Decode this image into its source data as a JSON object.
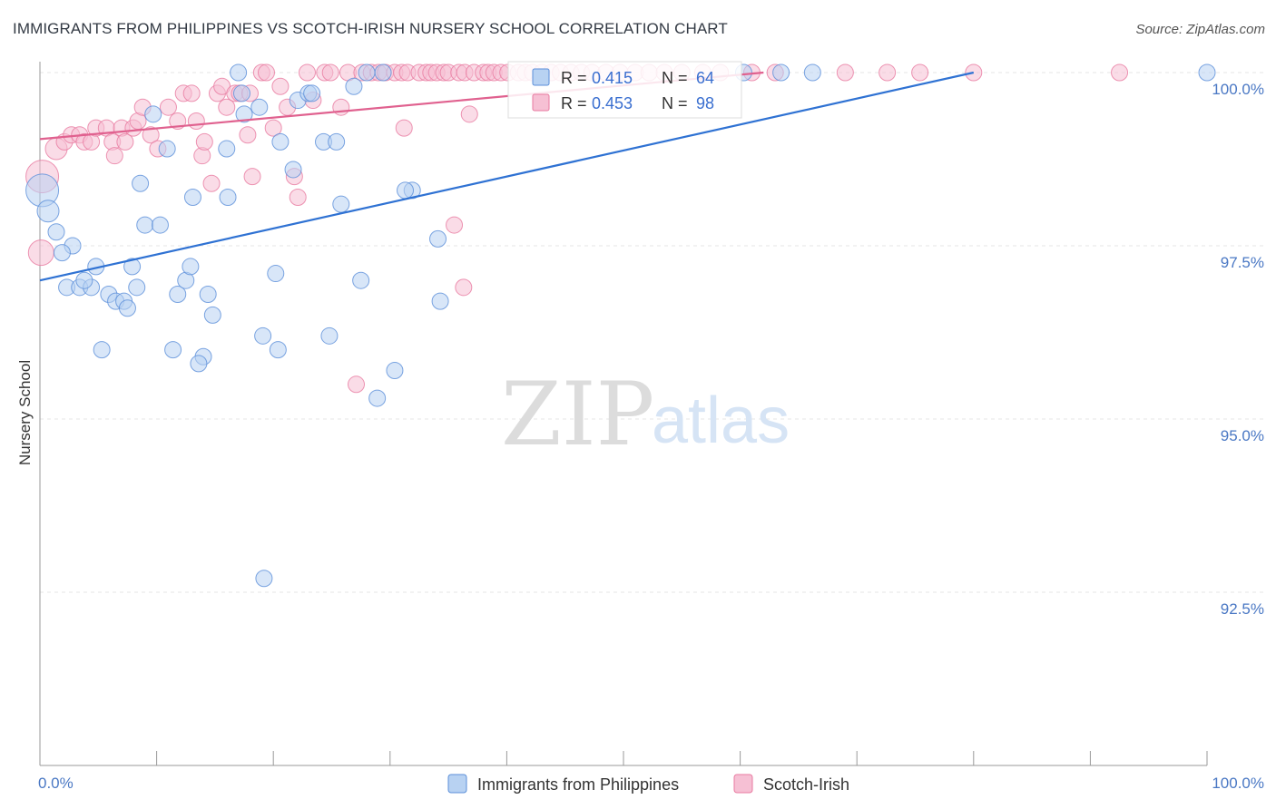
{
  "header": {
    "title": "IMMIGRANTS FROM PHILIPPINES VS SCOTCH-IRISH NURSERY SCHOOL CORRELATION CHART",
    "source": "Source: ZipAtlas.com"
  },
  "watermark": {
    "zip": "ZIP",
    "atlas": "atlas"
  },
  "colors": {
    "blue": "#5b8fd9",
    "blue_fill": "#b8d2f2",
    "pink": "#e87aa0",
    "pink_fill": "#f6c0d4",
    "axis_label": "#4a78c4"
  },
  "legend": {
    "series1": {
      "r_label": "R = ",
      "r_value": "0.415",
      "n_label": "N = ",
      "n_value": "64"
    },
    "series2": {
      "r_label": "R = ",
      "r_value": "0.453",
      "n_label": "N = ",
      "n_value": "98"
    }
  },
  "chart_data": {
    "type": "scatter",
    "title": "IMMIGRANTS FROM PHILIPPINES VS SCOTCH-IRISH NURSERY SCHOOL CORRELATION CHART",
    "xlabel": "",
    "ylabel": "Nursery School",
    "xlim": [
      0,
      100
    ],
    "ylim": [
      90.0,
      100.4
    ],
    "x_tick_labels": [
      "0.0%",
      "100.0%"
    ],
    "y_ticks": [
      100.0,
      97.5,
      95.0,
      92.5
    ],
    "y_tick_labels": [
      "100.0%",
      "97.5%",
      "95.0%",
      "92.5%"
    ],
    "series": [
      {
        "name": "Immigrants from Philippines",
        "color": "#5b8fd9",
        "trend": {
          "x0": 0,
          "y0": 97.0,
          "x1": 80,
          "y1": 100.0
        },
        "points": [
          [
            0.2,
            98.3,
            18
          ],
          [
            0.7,
            98.0,
            12
          ],
          [
            1.4,
            97.7,
            9
          ],
          [
            2.8,
            97.5,
            9
          ],
          [
            1.9,
            97.4,
            9
          ],
          [
            2.3,
            96.9,
            9
          ],
          [
            3.4,
            96.9,
            9
          ],
          [
            4.4,
            96.9,
            9
          ],
          [
            3.8,
            97.0,
            9
          ],
          [
            4.8,
            97.2,
            9
          ],
          [
            5.9,
            96.8,
            9
          ],
          [
            6.5,
            96.7,
            9
          ],
          [
            7.2,
            96.7,
            9
          ],
          [
            7.5,
            96.6,
            9
          ],
          [
            7.9,
            97.2,
            9
          ],
          [
            8.3,
            96.9,
            9
          ],
          [
            5.3,
            96.0,
            9
          ],
          [
            11.8,
            96.8,
            9
          ],
          [
            12.5,
            97.0,
            9
          ],
          [
            12.9,
            97.2,
            9
          ],
          [
            14.4,
            96.8,
            9
          ],
          [
            14.8,
            96.5,
            9
          ],
          [
            11.4,
            96.0,
            9
          ],
          [
            14.0,
            95.9,
            9
          ],
          [
            13.6,
            95.8,
            9
          ],
          [
            8.6,
            98.4,
            9
          ],
          [
            9.0,
            97.8,
            9
          ],
          [
            10.3,
            97.8,
            9
          ],
          [
            10.9,
            98.9,
            9
          ],
          [
            9.7,
            99.4,
            9
          ],
          [
            13.1,
            98.2,
            9
          ],
          [
            16.1,
            98.2,
            9
          ],
          [
            16.0,
            98.9,
            9
          ],
          [
            17.0,
            100.0,
            9
          ],
          [
            17.3,
            99.7,
            9
          ],
          [
            17.5,
            99.4,
            9
          ],
          [
            18.8,
            99.5,
            9
          ],
          [
            20.6,
            99.0,
            9
          ],
          [
            21.7,
            98.6,
            9
          ],
          [
            22.1,
            99.6,
            9
          ],
          [
            23.0,
            99.7,
            9
          ],
          [
            23.3,
            99.7,
            9
          ],
          [
            24.3,
            99.0,
            9
          ],
          [
            25.4,
            99.0,
            9
          ],
          [
            25.8,
            98.1,
            9
          ],
          [
            26.9,
            99.8,
            9
          ],
          [
            29.4,
            100.0,
            9
          ],
          [
            28.0,
            100.0,
            9
          ],
          [
            19.1,
            96.2,
            9
          ],
          [
            20.2,
            97.1,
            9
          ],
          [
            20.4,
            96.0,
            9
          ],
          [
            24.8,
            96.2,
            9
          ],
          [
            27.5,
            97.0,
            9
          ],
          [
            28.9,
            95.3,
            9
          ],
          [
            30.4,
            95.7,
            9
          ],
          [
            31.9,
            98.3,
            9
          ],
          [
            31.3,
            98.3,
            9
          ],
          [
            34.1,
            97.6,
            9
          ],
          [
            34.3,
            96.7,
            9
          ],
          [
            19.2,
            92.7,
            9
          ],
          [
            60.3,
            100.0,
            9
          ],
          [
            63.5,
            100.0,
            9
          ],
          [
            66.2,
            100.0,
            9
          ],
          [
            100.0,
            100.0,
            9
          ]
        ]
      },
      {
        "name": "Scotch-Irish",
        "color": "#e87aa0",
        "trend": {
          "x0": 0,
          "y0": 99.04,
          "x1": 62,
          "y1": 100.0
        },
        "points": [
          [
            0.2,
            98.5,
            18
          ],
          [
            0.1,
            97.4,
            14
          ],
          [
            1.4,
            98.9,
            12
          ],
          [
            2.1,
            99.0,
            9
          ],
          [
            2.7,
            99.1,
            9
          ],
          [
            3.4,
            99.1,
            9
          ],
          [
            3.8,
            99.0,
            9
          ],
          [
            4.4,
            99.0,
            9
          ],
          [
            4.8,
            99.2,
            9
          ],
          [
            5.7,
            99.2,
            9
          ],
          [
            6.2,
            99.0,
            9
          ],
          [
            6.4,
            98.8,
            9
          ],
          [
            7.0,
            99.2,
            9
          ],
          [
            7.3,
            99.0,
            9
          ],
          [
            8.0,
            99.2,
            9
          ],
          [
            8.4,
            99.3,
            9
          ],
          [
            8.8,
            99.5,
            9
          ],
          [
            9.5,
            99.1,
            9
          ],
          [
            10.1,
            98.9,
            9
          ],
          [
            11.0,
            99.5,
            9
          ],
          [
            11.8,
            99.3,
            9
          ],
          [
            12.3,
            99.7,
            9
          ],
          [
            13.0,
            99.7,
            9
          ],
          [
            13.4,
            99.3,
            9
          ],
          [
            13.9,
            98.8,
            9
          ],
          [
            14.1,
            99.0,
            9
          ],
          [
            14.7,
            98.4,
            9
          ],
          [
            15.2,
            99.7,
            9
          ],
          [
            15.6,
            99.8,
            9
          ],
          [
            16.0,
            99.5,
            9
          ],
          [
            16.7,
            99.7,
            9
          ],
          [
            17.1,
            99.7,
            9
          ],
          [
            17.8,
            99.1,
            9
          ],
          [
            18.0,
            99.7,
            9
          ],
          [
            18.2,
            98.5,
            9
          ],
          [
            19.0,
            100.0,
            9
          ],
          [
            19.4,
            100.0,
            9
          ],
          [
            20.0,
            99.2,
            9
          ],
          [
            20.6,
            99.8,
            9
          ],
          [
            21.2,
            99.5,
            9
          ],
          [
            21.8,
            98.5,
            9
          ],
          [
            22.1,
            98.2,
            9
          ],
          [
            22.9,
            100.0,
            9
          ],
          [
            23.4,
            99.6,
            9
          ],
          [
            24.4,
            100.0,
            9
          ],
          [
            24.9,
            100.0,
            9
          ],
          [
            25.8,
            99.5,
            9
          ],
          [
            26.4,
            100.0,
            9
          ],
          [
            27.1,
            95.5,
            9
          ],
          [
            27.6,
            100.0,
            9
          ],
          [
            28.4,
            100.0,
            9
          ],
          [
            29.0,
            100.0,
            9
          ],
          [
            29.6,
            100.0,
            9
          ],
          [
            30.4,
            100.0,
            9
          ],
          [
            31.0,
            100.0,
            9
          ],
          [
            31.5,
            100.0,
            9
          ],
          [
            32.5,
            100.0,
            9
          ],
          [
            33.1,
            100.0,
            9
          ],
          [
            33.5,
            100.0,
            9
          ],
          [
            34.0,
            100.0,
            9
          ],
          [
            34.6,
            100.0,
            9
          ],
          [
            35.0,
            100.0,
            9
          ],
          [
            35.9,
            100.0,
            9
          ],
          [
            36.4,
            100.0,
            9
          ],
          [
            37.2,
            100.0,
            9
          ],
          [
            38.0,
            100.0,
            9
          ],
          [
            38.4,
            100.0,
            9
          ],
          [
            38.9,
            100.0,
            9
          ],
          [
            39.5,
            100.0,
            9
          ],
          [
            40.1,
            100.0,
            9
          ],
          [
            41.0,
            100.0,
            9
          ],
          [
            41.6,
            100.0,
            9
          ],
          [
            42.2,
            100.0,
            9
          ],
          [
            43.0,
            100.0,
            9
          ],
          [
            43.8,
            100.0,
            9
          ],
          [
            44.6,
            100.0,
            9
          ],
          [
            45.5,
            100.0,
            9
          ],
          [
            46.4,
            100.0,
            9
          ],
          [
            47.3,
            100.0,
            9
          ],
          [
            48.5,
            100.0,
            9
          ],
          [
            49.7,
            100.0,
            9
          ],
          [
            51.0,
            100.0,
            9
          ],
          [
            52.2,
            100.0,
            9
          ],
          [
            53.5,
            100.0,
            9
          ],
          [
            31.2,
            99.2,
            9
          ],
          [
            36.8,
            99.4,
            9
          ],
          [
            35.5,
            97.8,
            9
          ],
          [
            36.3,
            96.9,
            9
          ],
          [
            55.0,
            100.0,
            9
          ],
          [
            56.8,
            100.0,
            9
          ],
          [
            58.3,
            100.0,
            9
          ],
          [
            61.0,
            100.0,
            9
          ],
          [
            63.0,
            100.0,
            9
          ],
          [
            69.0,
            100.0,
            9
          ],
          [
            72.6,
            100.0,
            9
          ],
          [
            75.4,
            100.0,
            9
          ],
          [
            80.0,
            100.0,
            9
          ],
          [
            92.5,
            100.0,
            9
          ]
        ]
      }
    ]
  }
}
